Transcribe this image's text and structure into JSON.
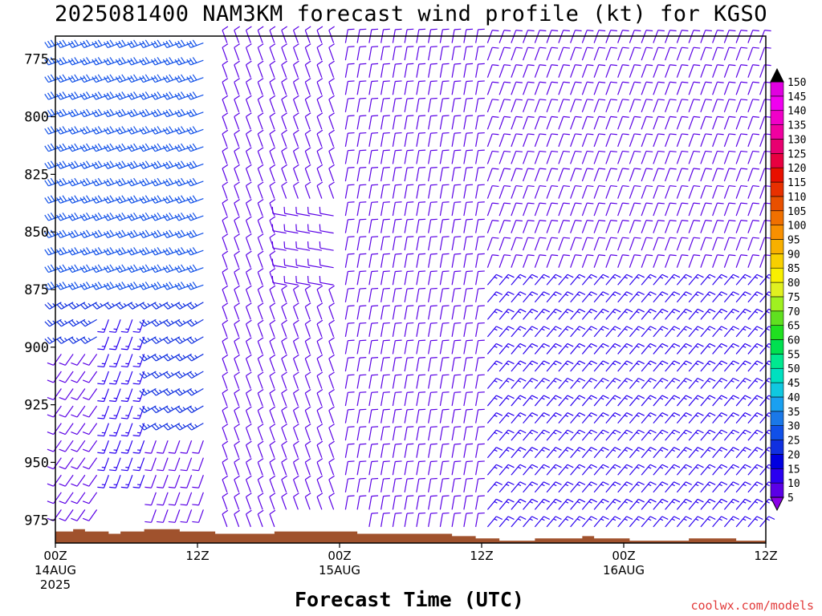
{
  "title": "2025081400 NAM3KM forecast wind profile (kt) for KGSO",
  "credit": "coolwx.com/models",
  "chart_data": {
    "type": "wind-barb-time-height",
    "xlabel": "Forecast Time (UTC)",
    "ylabel": "",
    "x_range_hours": [
      0,
      60
    ],
    "y_range_hpa": [
      765,
      985
    ],
    "y_ticks": [
      {
        "value": 775,
        "label": "775"
      },
      {
        "value": 800,
        "label": "800"
      },
      {
        "value": 825,
        "label": "825"
      },
      {
        "value": 850,
        "label": "850"
      },
      {
        "value": 875,
        "label": "875"
      },
      {
        "value": 900,
        "label": "900"
      },
      {
        "value": 925,
        "label": "925"
      },
      {
        "value": 950,
        "label": "950"
      },
      {
        "value": 975,
        "label": "975"
      }
    ],
    "x_ticks": [
      {
        "hour": 0,
        "lines": [
          "00Z",
          "14AUG",
          "2025"
        ]
      },
      {
        "hour": 12,
        "lines": [
          "12Z"
        ]
      },
      {
        "hour": 24,
        "lines": [
          "00Z",
          "15AUG"
        ]
      },
      {
        "hour": 36,
        "lines": [
          "12Z"
        ]
      },
      {
        "hour": 48,
        "lines": [
          "00Z",
          "16AUG"
        ]
      },
      {
        "hour": 60,
        "lines": [
          "12Z"
        ]
      }
    ],
    "colorbar": {
      "unit": "kt",
      "levels": [
        5,
        10,
        15,
        20,
        25,
        30,
        35,
        40,
        45,
        50,
        55,
        60,
        65,
        70,
        75,
        80,
        85,
        90,
        95,
        100,
        105,
        110,
        115,
        120,
        125,
        130,
        135,
        140,
        145,
        150
      ],
      "colors": [
        "#8a00e6",
        "#5a00e6",
        "#2a00f0",
        "#0000e0",
        "#1030e0",
        "#1050e8",
        "#1a78e8",
        "#1aa0f0",
        "#10c8e0",
        "#00e0c0",
        "#00e890",
        "#00e050",
        "#20e020",
        "#60e020",
        "#a0f020",
        "#e0f020",
        "#f8f000",
        "#f8d000",
        "#f8b000",
        "#f89000",
        "#f07000",
        "#e85000",
        "#e83000",
        "#e81000",
        "#e80040",
        "#e80070",
        "#f000a0",
        "#f000c8",
        "#f000f0",
        "#e000e0"
      ]
    },
    "terrain_surface_hpa": [
      {
        "hour": 0,
        "hpa": 980
      },
      {
        "hour": 1.5,
        "hpa": 979
      },
      {
        "hour": 2.5,
        "hpa": 980
      },
      {
        "hour": 4.5,
        "hpa": 981
      },
      {
        "hour": 5.5,
        "hpa": 980
      },
      {
        "hour": 7.5,
        "hpa": 979
      },
      {
        "hour": 10.5,
        "hpa": 980
      },
      {
        "hour": 13.5,
        "hpa": 981
      },
      {
        "hour": 18.5,
        "hpa": 980
      },
      {
        "hour": 25.5,
        "hpa": 981
      },
      {
        "hour": 33.5,
        "hpa": 982
      },
      {
        "hour": 35.5,
        "hpa": 983
      },
      {
        "hour": 37.5,
        "hpa": 984
      },
      {
        "hour": 40.5,
        "hpa": 983
      },
      {
        "hour": 44.5,
        "hpa": 982
      },
      {
        "hour": 45.5,
        "hpa": 983
      },
      {
        "hour": 48.5,
        "hpa": 984
      },
      {
        "hour": 53.5,
        "hpa": 983
      },
      {
        "hour": 57.5,
        "hpa": 984
      },
      {
        "hour": 60,
        "hpa": 984
      }
    ],
    "wind_regimes": [
      {
        "hours": [
          0,
          13
        ],
        "hpa_top": 765,
        "hpa_bottom": 880,
        "dir_deg": 250,
        "speed_kt": 30
      },
      {
        "hours": [
          0,
          13
        ],
        "hpa_top": 880,
        "hpa_bottom": 940,
        "dir_deg": 240,
        "speed_kt": 25
      },
      {
        "hours": [
          0,
          4
        ],
        "hpa_top": 900,
        "hpa_bottom": 985,
        "dir_deg": 215,
        "speed_kt": 10
      },
      {
        "hours": [
          4,
          8
        ],
        "hpa_top": 885,
        "hpa_bottom": 960,
        "dir_deg": 200,
        "speed_kt": 15
      },
      {
        "hours": [
          8,
          13
        ],
        "hpa_top": 940,
        "hpa_bottom": 985,
        "dir_deg": 200,
        "speed_kt": 10
      },
      {
        "hours": [
          14,
          24
        ],
        "hpa_top": 765,
        "hpa_bottom": 985,
        "dir_deg": 340,
        "speed_kt": 10
      },
      {
        "hours": [
          19,
          24
        ],
        "hpa_top": 840,
        "hpa_bottom": 880,
        "dir_deg": 280,
        "speed_kt": 10
      },
      {
        "hours": [
          24,
          36
        ],
        "hpa_top": 765,
        "hpa_bottom": 985,
        "dir_deg": 10,
        "speed_kt": 10
      },
      {
        "hours": [
          36,
          60
        ],
        "hpa_top": 765,
        "hpa_bottom": 870,
        "dir_deg": 20,
        "speed_kt": 10
      },
      {
        "hours": [
          36,
          60
        ],
        "hpa_top": 870,
        "hpa_bottom": 985,
        "dir_deg": 40,
        "speed_kt": 15
      }
    ]
  }
}
